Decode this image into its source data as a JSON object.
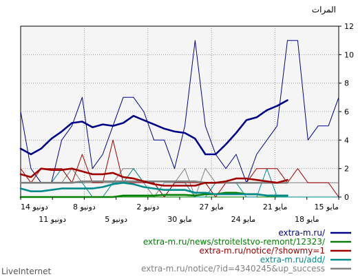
{
  "chart_data": {
    "type": "line",
    "ylabel": "المرات",
    "ylim": [
      0,
      12
    ],
    "yticks": [
      0,
      2,
      4,
      6,
      8,
      10,
      12
    ],
    "grid": true,
    "x_ticks_upper": [
      "14 دونيو",
      "8 دونيو",
      "2 دونيو",
      "27 مايو",
      "21 مايو",
      "15 مايو"
    ],
    "x_ticks_lower": [
      "11 دونيو",
      "5 دونيو",
      "30 مايو",
      "24 مايو",
      "18 مايو"
    ],
    "series": [
      {
        "name": "extra-m.ru/",
        "color": "#00008b",
        "thin": [
          6,
          2,
          1,
          1,
          4,
          5,
          7,
          2,
          3,
          5,
          7,
          7,
          6,
          4,
          4,
          2,
          5,
          11,
          5,
          3,
          2,
          3,
          1,
          3,
          4,
          5,
          11,
          11,
          4,
          5,
          5,
          7
        ],
        "avg": [
          3.4,
          3.0,
          3.4,
          4.1,
          4.6,
          5.2,
          5.3,
          4.9,
          5.1,
          5.0,
          5.2,
          5.7,
          5.4,
          5.1,
          4.8,
          4.6,
          4.5,
          4.1,
          3.0,
          3.0,
          3.7,
          4.5,
          5.4,
          5.6,
          6.1,
          6.4,
          6.8
        ]
      },
      {
        "name": "extra-m.ru/news/stroitelstvo-remont/12323/",
        "color": "#008000",
        "thin": [
          0,
          0,
          0,
          0,
          0,
          0,
          0,
          0,
          0,
          0,
          0,
          0,
          0,
          0,
          0,
          0,
          0,
          0,
          0,
          0,
          0,
          0,
          0,
          0,
          0,
          0,
          0,
          0,
          0,
          0,
          0,
          0
        ],
        "avg": [
          0,
          0,
          0,
          0,
          0,
          0,
          0,
          0,
          0,
          0,
          0.1,
          0.1,
          0.1,
          0.1,
          0.15,
          0.15,
          0.15,
          0.1,
          0.2,
          0.2,
          0.3,
          0.3,
          0.2,
          0.2,
          0.1,
          0.1,
          0.1
        ]
      },
      {
        "name": "extra-m.ru/notice/?showmy=1",
        "color": "#a00000",
        "thin": [
          2,
          1,
          2,
          2,
          2,
          1,
          3,
          1,
          1,
          4,
          1,
          1,
          1,
          1,
          0,
          1,
          1,
          1,
          1,
          0,
          1,
          1,
          1,
          2,
          2,
          2,
          1,
          2,
          1,
          1,
          1,
          0
        ],
        "avg": [
          1.6,
          1.4,
          2.0,
          1.9,
          1.9,
          2.0,
          1.8,
          1.6,
          1.6,
          1.7,
          1.4,
          1.3,
          1.1,
          0.9,
          0.8,
          0.8,
          0.8,
          0.8,
          1.0,
          1.0,
          1.1,
          1.3,
          1.3,
          1.2,
          1.1,
          1.0,
          1.2
        ]
      },
      {
        "name": "extra-m.ru/add/",
        "color": "#008b8b",
        "thin": [
          1,
          1,
          1,
          1,
          2,
          1,
          1,
          0,
          0,
          1,
          1,
          2,
          1,
          1,
          0,
          1,
          1,
          0,
          0,
          1,
          1,
          1,
          0,
          0,
          2,
          0,
          0,
          0,
          0,
          0,
          0,
          0
        ],
        "avg": [
          0.6,
          0.4,
          0.4,
          0.5,
          0.6,
          0.6,
          0.6,
          0.6,
          0.7,
          0.9,
          1.0,
          0.9,
          0.7,
          0.6,
          0.5,
          0.5,
          0.5,
          0.3,
          0.3,
          0.2,
          0.2,
          0.2,
          0.2,
          0.2,
          0.1,
          0.1,
          0.1
        ]
      },
      {
        "name": "extra-m.ru/notice/?id=4340245&up_success",
        "color": "#808080",
        "thin": [
          1,
          1,
          1,
          1,
          1,
          2,
          1,
          1,
          1,
          1,
          2,
          2,
          1,
          0,
          1,
          1,
          2,
          0,
          2,
          1,
          1,
          1,
          1,
          1,
          1,
          1,
          1,
          1,
          1,
          1,
          1,
          1
        ],
        "avg": [
          1.0,
          1.0,
          1.0,
          1.0,
          1.0,
          1.0,
          1.1,
          1.1,
          1.1,
          1.1,
          1.1,
          1.1,
          1.1,
          1.1,
          1.1,
          1.1,
          1.1,
          1.1,
          1.0,
          1.0,
          1.0,
          1.0,
          1.0,
          1.0,
          1.0,
          1.0,
          1.0
        ]
      }
    ]
  },
  "footer": {
    "brand": "LiveInternet"
  }
}
